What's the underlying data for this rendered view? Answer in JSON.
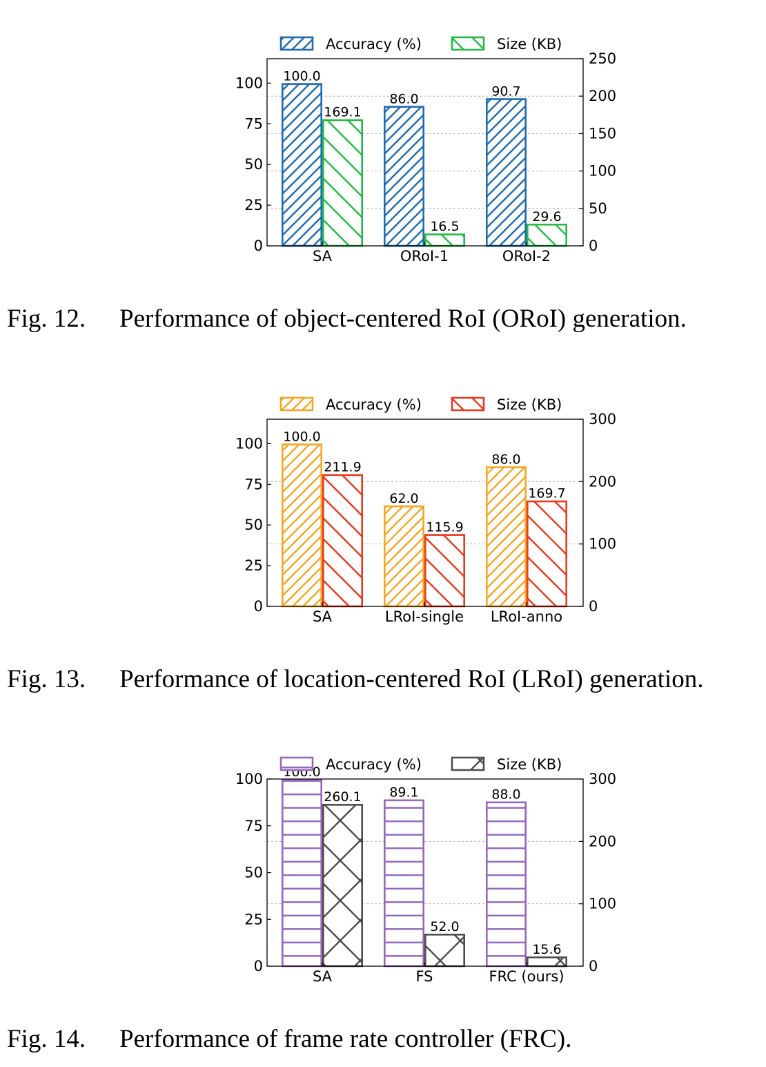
{
  "figures": [
    {
      "caption_number": "Fig. 12.",
      "caption_text": "Performance of object-centered RoI (ORoI) generation.",
      "accent_color": "#1f6bb0",
      "secondary_color": "#22bb44",
      "chart_data": {
        "type": "bar",
        "categories": [
          "SA",
          "ORoI-1",
          "ORoI-2"
        ],
        "series": [
          {
            "name": "Accuracy (%)",
            "axis": "left",
            "values": [
              100.0,
              86.0,
              90.7
            ],
            "labels": [
              "100.0",
              "86.0",
              "90.7"
            ],
            "hatch": "forward-diagonal",
            "color": "#1f6bb0"
          },
          {
            "name": "Size (KB)",
            "axis": "right",
            "values": [
              169.1,
              16.5,
              29.6
            ],
            "labels": [
              "169.1",
              "16.5",
              "29.6"
            ],
            "hatch": "back-diagonal",
            "color": "#22bb44"
          }
        ],
        "y_left": {
          "ylim": [
            0,
            115
          ],
          "ticks": [
            0,
            25,
            50,
            75,
            100
          ]
        },
        "y_right": {
          "ylim": [
            0,
            250
          ],
          "ticks": [
            0,
            50,
            100,
            150,
            200,
            250
          ]
        },
        "grid": "horizontal-dashed",
        "legend": "top"
      }
    },
    {
      "caption_number": "Fig. 13.",
      "caption_text": "Performance of location-centered RoI (LRoI) generation.",
      "accent_color": "#f5a623",
      "secondary_color": "#e8391f",
      "chart_data": {
        "type": "bar",
        "categories": [
          "SA",
          "LRoI-single",
          "LRoI-anno"
        ],
        "series": [
          {
            "name": "Accuracy (%)",
            "axis": "left",
            "values": [
              100.0,
              62.0,
              86.0
            ],
            "labels": [
              "100.0",
              "62.0",
              "86.0"
            ],
            "hatch": "forward-diagonal",
            "color": "#f5a623"
          },
          {
            "name": "Size (KB)",
            "axis": "right",
            "values": [
              211.9,
              115.9,
              169.7
            ],
            "labels": [
              "211.9",
              "115.9",
              "169.7"
            ],
            "hatch": "back-diagonal",
            "color": "#e8391f"
          }
        ],
        "y_left": {
          "ylim": [
            0,
            115
          ],
          "ticks": [
            0,
            25,
            50,
            75,
            100
          ]
        },
        "y_right": {
          "ylim": [
            0,
            300
          ],
          "ticks": [
            0,
            100,
            200,
            300
          ]
        },
        "grid": "horizontal-dashed",
        "legend": "top"
      }
    },
    {
      "caption_number": "Fig. 14.",
      "caption_text": "Performance of frame rate controller (FRC).",
      "accent_color": "#9467bd",
      "secondary_color": "#4d4d4d",
      "chart_data": {
        "type": "bar",
        "categories": [
          "SA",
          "FS",
          "FRC (ours)"
        ],
        "series": [
          {
            "name": "Accuracy (%)",
            "axis": "left",
            "values": [
              100.0,
              89.1,
              88.0
            ],
            "labels": [
              "100.0",
              "89.1",
              "88.0"
            ],
            "hatch": "horizontal",
            "color": "#9467bd"
          },
          {
            "name": "Size (KB)",
            "axis": "right",
            "values": [
              260.1,
              52.0,
              15.6
            ],
            "labels": [
              "260.1",
              "52.0",
              "15.6"
            ],
            "hatch": "cross",
            "color": "#4d4d4d"
          }
        ],
        "y_left": {
          "ylim": [
            0,
            100
          ],
          "ticks": [
            0,
            25,
            50,
            75,
            100
          ]
        },
        "y_right": {
          "ylim": [
            0,
            300
          ],
          "ticks": [
            0,
            100,
            200,
            300
          ]
        },
        "grid": "horizontal-dashed",
        "legend": "top"
      }
    }
  ]
}
